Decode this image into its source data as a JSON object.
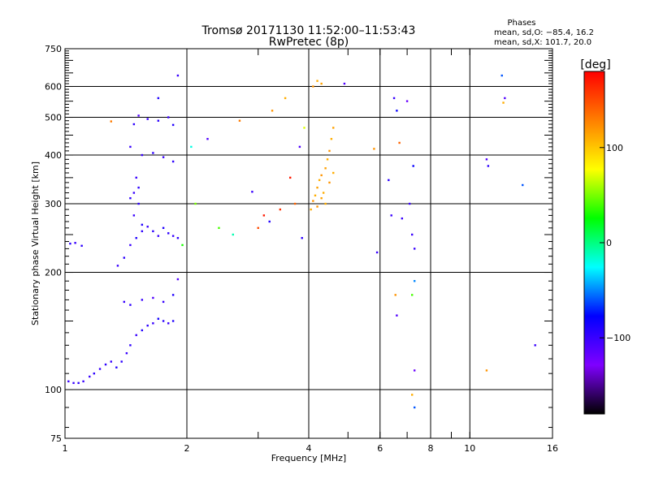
{
  "chart_data": {
    "type": "scatter",
    "title": "Tromsø 20171130 11:52:00–11:53:43",
    "subtitle": "RwPretec (8p)",
    "stats": {
      "heading": "Phases",
      "line1": "mean, sd,O: −85.4, 16.2",
      "line2": "mean, sd,X: 101.7, 20.0"
    },
    "xlabel": "Frequency [MHz]",
    "ylabel": "Stationary phase Virtual Height [km]",
    "x_scale": "log",
    "y_scale": "log",
    "xlim": [
      1,
      16
    ],
    "ylim": [
      75,
      750
    ],
    "x_ticks": [
      {
        "value": 1,
        "label": "1"
      },
      {
        "value": 2,
        "label": "2"
      },
      {
        "value": 4,
        "label": "4"
      },
      {
        "value": 6,
        "label": "6"
      },
      {
        "value": 8,
        "label": "8"
      },
      {
        "value": 10,
        "label": "10"
      },
      {
        "value": 16,
        "label": "16"
      }
    ],
    "y_ticks": [
      {
        "value": 75,
        "label": "75"
      },
      {
        "value": 100,
        "label": "100"
      },
      {
        "value": 200,
        "label": "200"
      },
      {
        "value": 300,
        "label": "300"
      },
      {
        "value": 400,
        "label": "400"
      },
      {
        "value": 500,
        "label": "500"
      },
      {
        "value": 600,
        "label": "600"
      },
      {
        "value": 750,
        "label": "750"
      }
    ],
    "grid": true,
    "colorbar": {
      "label": "[deg]",
      "range": [
        -180,
        180
      ],
      "ticks": [
        {
          "value": 100,
          "label": "100"
        },
        {
          "value": 0,
          "label": "0"
        },
        {
          "value": -100,
          "label": "−100"
        }
      ],
      "colors": [
        "#000000",
        "#7f00ff",
        "#0000ff",
        "#00ffff",
        "#00ff00",
        "#ffff00",
        "#ff7f00",
        "#ff0000"
      ]
    },
    "series_fields": [
      "frequency_mhz",
      "virtual_height_km",
      "phase_deg"
    ],
    "points": [
      [
        1.02,
        105,
        -100
      ],
      [
        1.05,
        104,
        -100
      ],
      [
        1.08,
        104,
        -95
      ],
      [
        1.11,
        105,
        -100
      ],
      [
        1.15,
        108,
        -100
      ],
      [
        1.18,
        110,
        -95
      ],
      [
        1.22,
        113,
        -100
      ],
      [
        1.26,
        116,
        -95
      ],
      [
        1.3,
        118,
        -100
      ],
      [
        1.34,
        114,
        -90
      ],
      [
        1.38,
        118,
        -95
      ],
      [
        1.42,
        124,
        -100
      ],
      [
        1.45,
        130,
        -95
      ],
      [
        1.5,
        138,
        -100
      ],
      [
        1.55,
        142,
        -90
      ],
      [
        1.6,
        146,
        -95
      ],
      [
        1.65,
        148,
        -100
      ],
      [
        1.7,
        152,
        -85
      ],
      [
        1.75,
        150,
        -95
      ],
      [
        1.8,
        148,
        -100
      ],
      [
        1.85,
        150,
        -90
      ],
      [
        1.45,
        165,
        -95
      ],
      [
        1.55,
        170,
        -100
      ],
      [
        1.65,
        172,
        -110
      ],
      [
        1.75,
        168,
        -100
      ],
      [
        1.85,
        175,
        -90
      ],
      [
        1.9,
        192,
        -110
      ],
      [
        1.4,
        168,
        -100
      ],
      [
        1.03,
        237,
        -95
      ],
      [
        1.06,
        238,
        -100
      ],
      [
        1.1,
        234,
        -95
      ],
      [
        1.35,
        208,
        -100
      ],
      [
        1.4,
        218,
        -95
      ],
      [
        1.45,
        235,
        -100
      ],
      [
        1.5,
        245,
        -90
      ],
      [
        1.55,
        255,
        -95
      ],
      [
        1.6,
        262,
        -100
      ],
      [
        1.65,
        255,
        -95
      ],
      [
        1.7,
        248,
        -100
      ],
      [
        1.75,
        260,
        -90
      ],
      [
        1.8,
        252,
        -95
      ],
      [
        1.85,
        248,
        -100
      ],
      [
        1.9,
        245,
        -95
      ],
      [
        1.48,
        280,
        -100
      ],
      [
        1.52,
        300,
        -95
      ],
      [
        1.55,
        265,
        -90
      ],
      [
        1.5,
        350,
        -100
      ],
      [
        1.52,
        330,
        -95
      ],
      [
        1.48,
        320,
        -100
      ],
      [
        1.45,
        310,
        -95
      ],
      [
        1.45,
        420,
        -100
      ],
      [
        1.48,
        480,
        -95
      ],
      [
        1.52,
        505,
        -110
      ],
      [
        1.6,
        495,
        -100
      ],
      [
        1.7,
        490,
        -95
      ],
      [
        1.8,
        500,
        -100
      ],
      [
        1.85,
        478,
        -90
      ],
      [
        1.55,
        400,
        -100
      ],
      [
        1.65,
        405,
        -95
      ],
      [
        1.75,
        395,
        -100
      ],
      [
        1.85,
        385,
        -95
      ],
      [
        1.7,
        560,
        -90
      ],
      [
        1.9,
        640,
        -100
      ],
      [
        1.3,
        488,
        130
      ],
      [
        1.95,
        235,
        30
      ],
      [
        2.05,
        420,
        -20
      ],
      [
        2.1,
        300,
        50
      ],
      [
        2.25,
        440,
        -110
      ],
      [
        2.4,
        260,
        40
      ],
      [
        2.6,
        250,
        -10
      ],
      [
        2.7,
        490,
        130
      ],
      [
        2.9,
        322,
        -100
      ],
      [
        3.0,
        260,
        150
      ],
      [
        3.1,
        280,
        170
      ],
      [
        3.2,
        270,
        -90
      ],
      [
        3.25,
        520,
        120
      ],
      [
        3.4,
        290,
        160
      ],
      [
        3.5,
        560,
        110
      ],
      [
        3.6,
        350,
        170
      ],
      [
        3.7,
        300,
        140
      ],
      [
        3.8,
        420,
        -110
      ],
      [
        3.85,
        245,
        -95
      ],
      [
        3.9,
        470,
        70
      ],
      [
        4.05,
        290,
        110
      ],
      [
        4.1,
        305,
        120
      ],
      [
        4.15,
        315,
        110
      ],
      [
        4.2,
        330,
        115
      ],
      [
        4.25,
        345,
        110
      ],
      [
        4.3,
        355,
        120
      ],
      [
        4.35,
        320,
        110
      ],
      [
        4.4,
        370,
        115
      ],
      [
        4.45,
        390,
        110
      ],
      [
        4.5,
        410,
        120
      ],
      [
        4.55,
        440,
        110
      ],
      [
        4.6,
        470,
        115
      ],
      [
        4.2,
        295,
        120
      ],
      [
        4.3,
        310,
        115
      ],
      [
        4.4,
        300,
        110
      ],
      [
        4.5,
        340,
        120
      ],
      [
        4.6,
        360,
        110
      ],
      [
        4.1,
        600,
        120
      ],
      [
        4.2,
        620,
        110
      ],
      [
        4.3,
        610,
        115
      ],
      [
        4.9,
        610,
        -110
      ],
      [
        5.8,
        415,
        120
      ],
      [
        5.9,
        225,
        -100
      ],
      [
        6.3,
        345,
        -95
      ],
      [
        6.4,
        280,
        -100
      ],
      [
        6.5,
        560,
        -100
      ],
      [
        6.6,
        520,
        -80
      ],
      [
        6.7,
        430,
        140
      ],
      [
        6.55,
        175,
        120
      ],
      [
        6.6,
        155,
        -110
      ],
      [
        6.8,
        275,
        -100
      ],
      [
        7.0,
        550,
        -120
      ],
      [
        7.1,
        300,
        -100
      ],
      [
        7.2,
        250,
        -100
      ],
      [
        7.3,
        190,
        -50
      ],
      [
        7.2,
        175,
        40
      ],
      [
        7.3,
        112,
        -120
      ],
      [
        7.3,
        90,
        -60
      ],
      [
        7.2,
        97,
        110
      ],
      [
        7.25,
        375,
        -80
      ],
      [
        7.3,
        230,
        -100
      ],
      [
        11.0,
        390,
        -110
      ],
      [
        11.1,
        375,
        -95
      ],
      [
        11.0,
        112,
        120
      ],
      [
        12.0,
        640,
        -60
      ],
      [
        12.2,
        560,
        -110
      ],
      [
        12.1,
        545,
        110
      ],
      [
        13.5,
        335,
        -60
      ],
      [
        14.5,
        130,
        -100
      ]
    ]
  }
}
